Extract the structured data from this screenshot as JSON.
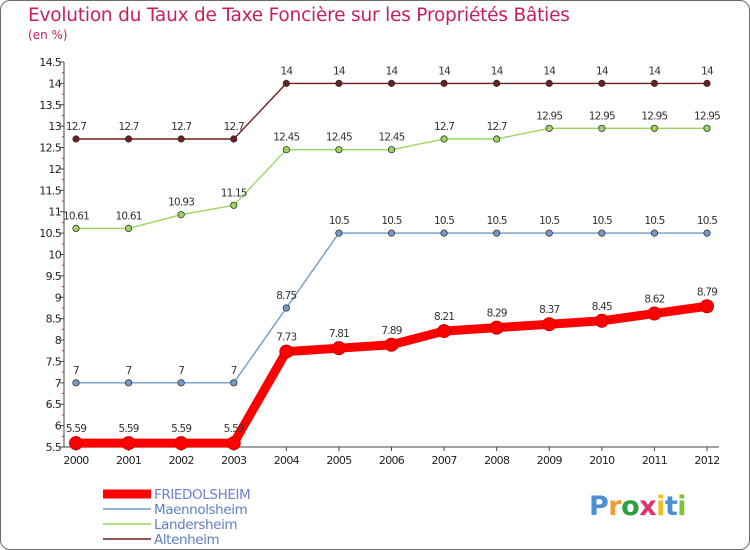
{
  "chart_data": {
    "type": "line",
    "title": "Evolution du Taux de Taxe Foncière sur les Propriétés Bâties",
    "unit_label": "(en %)",
    "x": [
      "2000",
      "2001",
      "2002",
      "2003",
      "2004",
      "2005",
      "2006",
      "2007",
      "2008",
      "2009",
      "2010",
      "2011",
      "2012"
    ],
    "ylim": [
      5.5,
      14.5
    ],
    "yticks": [
      5.5,
      6,
      6.5,
      7,
      7.5,
      8,
      8.5,
      9,
      9.5,
      10,
      10.5,
      11,
      11.5,
      12,
      12.5,
      13,
      13.5,
      14,
      14.5
    ],
    "grid": false,
    "legend_position": "bottom-left",
    "series": [
      {
        "name": "FRIEDOLSHEIM",
        "color": "#ff0000",
        "values": [
          5.59,
          5.59,
          5.59,
          5.59,
          7.73,
          7.81,
          7.89,
          8.21,
          8.29,
          8.37,
          8.45,
          8.62,
          8.79
        ],
        "labels": [
          "5.59",
          "5.59",
          "5.59",
          "5.59",
          "7.73",
          "7.81",
          "7.89",
          "8.21",
          "8.29",
          "8.37",
          "8.45",
          "8.62",
          "8.79"
        ]
      },
      {
        "name": "Maennolsheim",
        "color": "#6e9cc8",
        "values": [
          7,
          7,
          7,
          7,
          8.75,
          10.5,
          10.5,
          10.5,
          10.5,
          10.5,
          10.5,
          10.5,
          10.5
        ],
        "labels": [
          "7",
          "7",
          "7",
          "7",
          "8.75",
          "10.5",
          "10.5",
          "10.5",
          "10.5",
          "10.5",
          "10.5",
          "10.5",
          "10.5"
        ]
      },
      {
        "name": "Landersheim",
        "color": "#9ad75f",
        "values": [
          10.61,
          10.61,
          10.93,
          11.15,
          12.45,
          12.45,
          12.45,
          12.7,
          12.7,
          12.95,
          12.95,
          12.95,
          12.95
        ],
        "labels": [
          "10.61",
          "10.61",
          "10.93",
          "11.15",
          "12.45",
          "12.45",
          "12.45",
          "12.7",
          "12.7",
          "12.95",
          "12.95",
          "12.95",
          "12.95"
        ]
      },
      {
        "name": "Altenheim",
        "color": "#6b1f1f",
        "values": [
          12.7,
          12.7,
          12.7,
          12.7,
          14,
          14,
          14,
          14,
          14,
          14,
          14,
          14,
          14
        ],
        "labels": [
          "12.7",
          "12.7",
          "12.7",
          "12.7",
          "14",
          "14",
          "14",
          "14",
          "14",
          "14",
          "14",
          "14",
          "14"
        ]
      }
    ]
  },
  "legend": {
    "items": [
      "FRIEDOLSHEIM",
      "Maennolsheim",
      "Landersheim",
      "Altenheim"
    ],
    "text_colors": [
      "#6e7ed6",
      "#5e7fc0",
      "#5e7fc0",
      "#5e7fc0"
    ]
  },
  "logo": {
    "letters": [
      "P",
      "r",
      "o",
      "x",
      "i",
      "t",
      "i"
    ],
    "colors": [
      "#4a8fd4",
      "#f0a030",
      "#2e9e44",
      "#e0336e",
      "#f0c020",
      "#4a8fd4",
      "#7ec23a"
    ]
  }
}
